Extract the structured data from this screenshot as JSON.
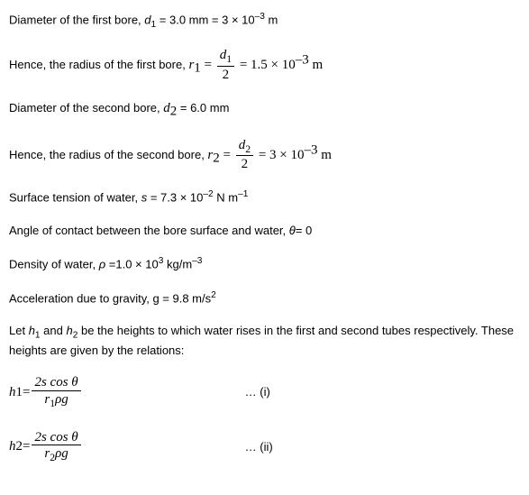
{
  "line1": {
    "text_a": "Diameter of the first bore, ",
    "var": "d",
    "sub": "1",
    "text_b": " = 3.0 mm = 3 × 10",
    "exp": "–3",
    "text_c": " m"
  },
  "line2": {
    "text_a": "Hence, the radius of the first bore, ",
    "lhs_var": "r",
    "lhs_sub": "1",
    "eq": " = ",
    "num_var": "d",
    "num_sub": "1",
    "den": "2",
    "after": " = 1.5 × 10",
    "exp": "–3",
    "unit": "  m"
  },
  "line3": {
    "text_a": "Diameter of the second bore, ",
    "var": "d",
    "sub": "2",
    "text_b": " = 6.0 mm"
  },
  "line4": {
    "text_a": "Hence, the radius of the second bore, ",
    "lhs_var": "r",
    "lhs_sub": "2",
    "eq": " = ",
    "num_var": "d",
    "num_sub": "2",
    "den": "2",
    "after": " = 3 × 10",
    "exp": "–3",
    "unit": "  m"
  },
  "line5": {
    "text_a": "Surface tension of water, ",
    "var": "s",
    "text_b": " = 7.3 × 10",
    "exp": "–2",
    "unit_a": " N m",
    "exp2": "–1"
  },
  "line6": {
    "text_a": "Angle of contact between the bore surface and water, ",
    "var": "θ",
    "text_b": "= 0"
  },
  "line7": {
    "text_a": "Density of water, ",
    "var": "ρ ",
    "text_b": "=1.0 × 10",
    "exp": "3",
    "unit_a": " kg/m",
    "exp2": "–3"
  },
  "line8": {
    "text_a": "Acceleration due to gravity, g = 9.8 m/s",
    "exp": "2"
  },
  "line9": {
    "text_a": "Let ",
    "v1": "h",
    "s1": "1",
    "text_b": " and ",
    "v2": "h",
    "s2": "2",
    "text_c": " be the heights to which water rises in the first and second tubes respectively. These heights are given by the relations:"
  },
  "eq1": {
    "lhs_var": "h",
    "lhs_sub": "1",
    "eq": " = ",
    "num": "2s cos θ",
    "den_a": "r",
    "den_sub": "1",
    "den_b": "ρg",
    "tag": "… (i)"
  },
  "eq2": {
    "lhs_var": "h",
    "lhs_sub": "2",
    "eq": " = ",
    "num": "2s cos θ",
    "den_a": "r",
    "den_sub": "2",
    "den_b": "ρg",
    "tag": "… (ii)"
  }
}
